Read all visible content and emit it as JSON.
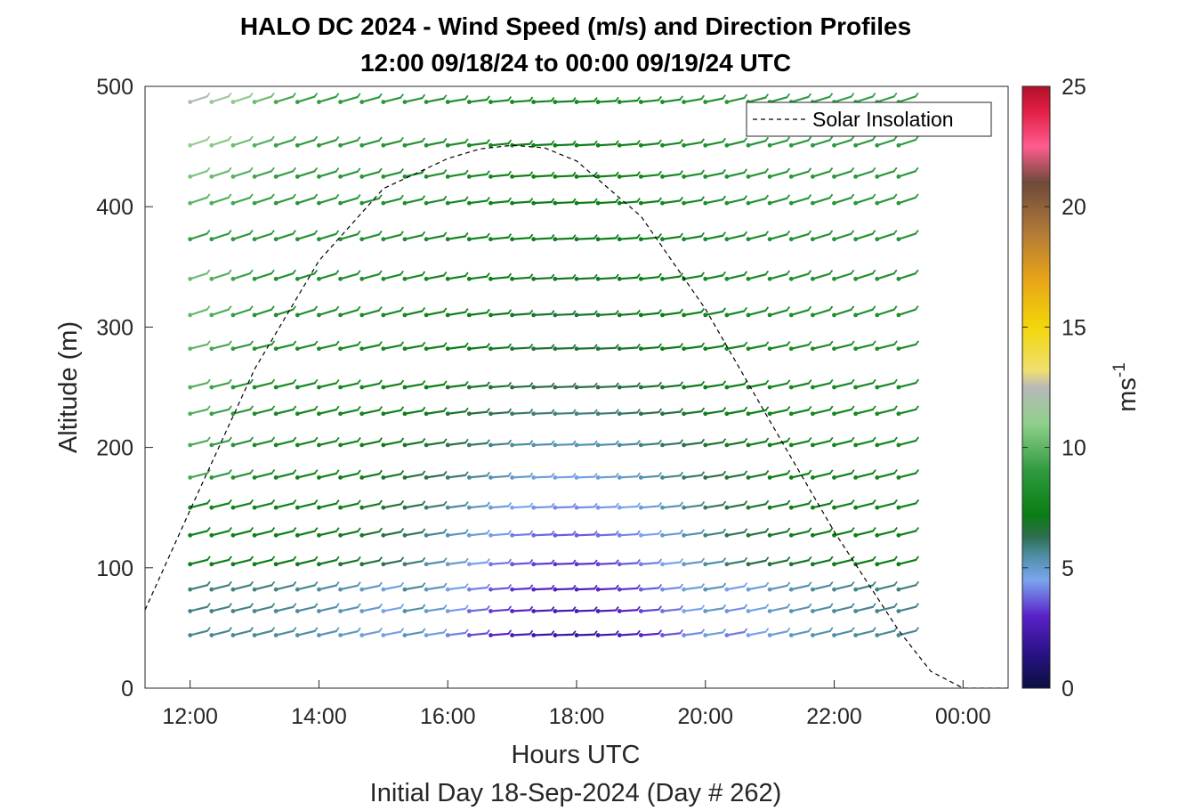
{
  "chart_data": {
    "type": "wind_barb_profile",
    "title_line1": "HALO DC 2024 - Wind Speed (m/s) and Direction Profiles",
    "title_line2": "12:00 09/18/24 to 00:00 09/19/24  UTC",
    "xlabel": "Hours UTC",
    "xlabel2": "Initial Day 18-Sep-2024 (Day # 262)",
    "ylabel": "Altitude (m)",
    "colorbar_label": "ms",
    "colorbar_label_exp": "-1",
    "x_ticks": [
      12,
      14,
      16,
      18,
      20,
      22,
      24
    ],
    "x_tick_labels": [
      "12:00",
      "14:00",
      "16:00",
      "18:00",
      "20:00",
      "22:00",
      "00:00"
    ],
    "xlim": [
      11.3,
      24.7
    ],
    "y_ticks": [
      0,
      100,
      200,
      300,
      400,
      500
    ],
    "y_tick_labels": [
      "0",
      "100",
      "200",
      "300",
      "400",
      "500"
    ],
    "ylim": [
      0,
      500
    ],
    "colorbar_ticks": [
      0,
      5,
      10,
      15,
      20,
      25
    ],
    "colorbar_tick_labels": [
      "0",
      "5",
      "10",
      "15",
      "20",
      "25"
    ],
    "colorbar_lim": [
      0,
      25
    ],
    "legend": {
      "entries": [
        "Solar Insolation"
      ],
      "placement": "top-right"
    },
    "altitudes": [
      44,
      64,
      82,
      103,
      127,
      150,
      175,
      202,
      228,
      250,
      282,
      310,
      340,
      373,
      403,
      425,
      451,
      487
    ],
    "time_start": 12.0,
    "time_step": 0.3333,
    "time_count": 34,
    "solar_insolation": {
      "hours": [
        11.3,
        12.0,
        13.0,
        14.0,
        15.0,
        16.0,
        16.5,
        17.0,
        17.5,
        18.0,
        19.0,
        20.0,
        21.0,
        22.0,
        23.0,
        23.5,
        24.0,
        24.3,
        24.7
      ],
      "values": [
        65,
        148,
        265,
        355,
        415,
        440,
        448,
        451,
        449,
        438,
        392,
        315,
        222,
        130,
        48,
        14,
        0,
        0,
        0
      ]
    },
    "colormap_stops": [
      {
        "v": 0,
        "c": "#0a1040"
      },
      {
        "v": 1.5,
        "c": "#2a1288"
      },
      {
        "v": 3,
        "c": "#5a22c8"
      },
      {
        "v": 4.5,
        "c": "#7aa6ee"
      },
      {
        "v": 5.5,
        "c": "#4f8ea5"
      },
      {
        "v": 6.3,
        "c": "#2e6e4e"
      },
      {
        "v": 7.2,
        "c": "#0a7d14"
      },
      {
        "v": 9,
        "c": "#2e9a3e"
      },
      {
        "v": 11,
        "c": "#8fd08c"
      },
      {
        "v": 12.5,
        "c": "#b8b8b8"
      },
      {
        "v": 13.2,
        "c": "#f0e070"
      },
      {
        "v": 15,
        "c": "#f2d60a"
      },
      {
        "v": 17,
        "c": "#e8a418"
      },
      {
        "v": 19,
        "c": "#b07838"
      },
      {
        "v": 21,
        "c": "#6e4a3a"
      },
      {
        "v": 22.5,
        "c": "#ff5c90"
      },
      {
        "v": 24,
        "c": "#e01e44"
      },
      {
        "v": 25,
        "c": "#b0102a"
      }
    ],
    "wind_speed_description": "Yellow-green near 12:00 aloft, green elsewhere; light blue/purple low-level minimum near 17:00-19:00",
    "barb_direction": "from west-southwest"
  }
}
